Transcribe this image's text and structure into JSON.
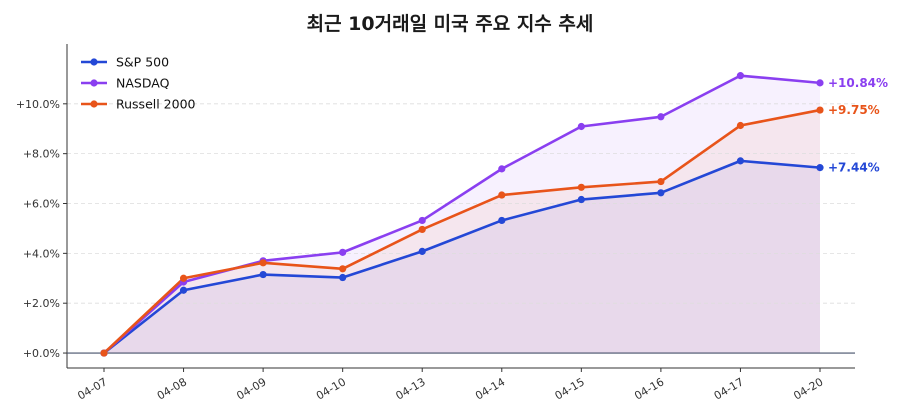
{
  "chart_data": {
    "type": "line",
    "title": "최근 10거래일 미국 주요 지수 추세",
    "xlabel": "",
    "ylabel": "",
    "categories": [
      "04-07",
      "04-08",
      "04-09",
      "04-10",
      "04-13",
      "04-14",
      "04-15",
      "04-16",
      "04-17",
      "04-20"
    ],
    "ylim": [
      -0.6,
      12.4
    ],
    "yticks": [
      0,
      2,
      4,
      6,
      8,
      10
    ],
    "ytick_labels": [
      "+0.0%",
      "+2.0%",
      "+4.0%",
      "+6.0%",
      "+8.0%",
      "+10.0%"
    ],
    "grid": "horizontal-dashed",
    "legend_position": "top-left",
    "series": [
      {
        "name": "S&P 500",
        "color": "#2448d6",
        "values": [
          0.0,
          2.52,
          3.15,
          3.03,
          4.08,
          5.32,
          6.16,
          6.43,
          7.71,
          7.44
        ],
        "end_label": "+7.44%"
      },
      {
        "name": "NASDAQ",
        "color": "#8a3ff0",
        "values": [
          0.0,
          2.85,
          3.7,
          4.04,
          5.32,
          7.39,
          9.09,
          9.48,
          11.13,
          10.84
        ],
        "end_label": "+10.84%"
      },
      {
        "name": "Russell 2000",
        "color": "#e8541a",
        "values": [
          0.0,
          3.0,
          3.62,
          3.38,
          4.96,
          6.34,
          6.65,
          6.88,
          9.13,
          9.75
        ],
        "end_label": "+9.75%"
      }
    ]
  }
}
